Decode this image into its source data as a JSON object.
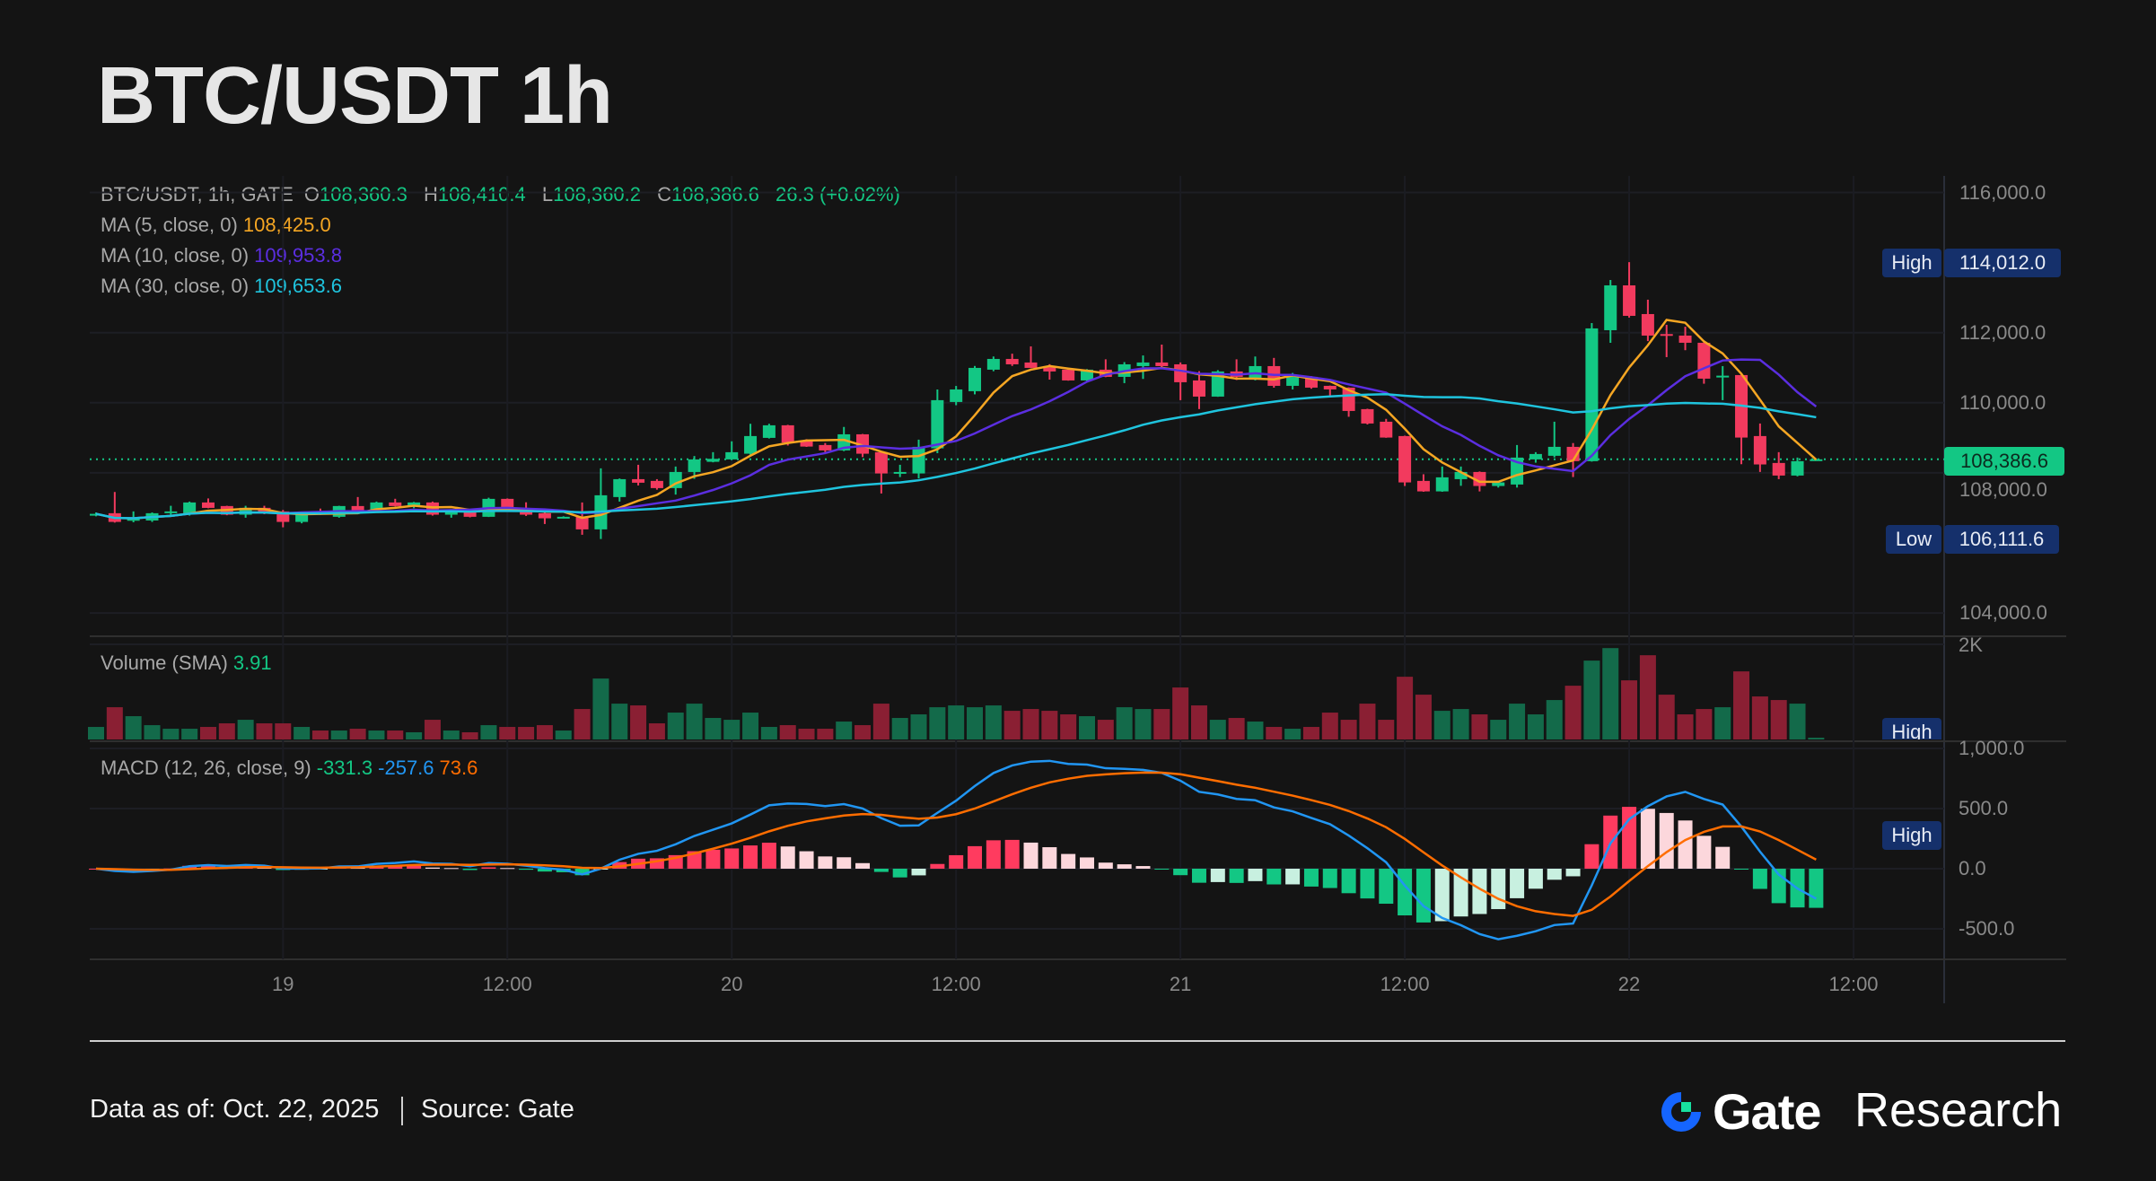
{
  "title": "BTC/USDT 1h",
  "legend": {
    "symbol": "BTC/USDT, 1h, GATE",
    "o_label": "O",
    "o": "108,360.3",
    "h_label": "H",
    "h": "108,410.4",
    "l_label": "L",
    "l": "108,360.2",
    "c_label": "C",
    "c": "108,386.6",
    "change": "26.3 (+0.02%)",
    "ma5_label": "MA (5, close, 0)",
    "ma5": "108,425.0",
    "ma10_label": "MA (10, close, 0)",
    "ma10": "109,953.8",
    "ma30_label": "MA (30, close, 0)",
    "ma30": "109,653.6",
    "volume_label": "Volume (SMA)",
    "volume": "3.91",
    "macd_label": "MACD (12, 26, close, 9)",
    "macd_hist": "-331.3",
    "macd_line": "-257.6",
    "macd_signal": "73.6"
  },
  "badges": {
    "high_label": "High",
    "high_value": "114,012.0",
    "low_label": "Low",
    "low_value": "106,111.6",
    "last_price": "108,386.6",
    "volume_high_label": "High",
    "macd_high_label": "High"
  },
  "colors": {
    "up": "#13c784",
    "down": "#f23a5e",
    "vol_up": "#136a4a",
    "vol_down": "#8a1f33",
    "ma5": "#f5a623",
    "ma10": "#5b2ee0",
    "ma30": "#1fc4de",
    "macd": "#2196f3",
    "signal": "#ff6d00",
    "hist_up_strong": "#ff3b5f",
    "hist_up_weak": "#fcd7dc",
    "hist_down_strong": "#13c784",
    "hist_down_weak": "#c8f0e0",
    "badge": "#15306b"
  },
  "footer": {
    "data_as_of": "Data as of: Oct. 22, 2025",
    "source": "Source:  Gate",
    "logo_gate": "Gate",
    "logo_research": "Research"
  },
  "chart_data": {
    "type": "candlestick",
    "title": "BTC/USDT 1h",
    "price_axis": {
      "ylim": [
        103200,
        116400
      ],
      "ticks": [
        "116,000.0",
        "112,000.0",
        "110,000.0",
        "108,000.0",
        "104,000.0"
      ],
      "tick_values": [
        116000,
        112000,
        110000,
        108000,
        104000
      ]
    },
    "volume_axis": {
      "max": 2000,
      "ticks": [
        "2K"
      ]
    },
    "macd_axis": {
      "ylim": [
        -750,
        1050
      ],
      "ticks": [
        "1,000.0",
        "500.0",
        "0.0",
        "-500.0"
      ],
      "tick_values": [
        1000,
        500,
        0,
        -500
      ]
    },
    "time_labels": [
      {
        "label": "19",
        "index": 10
      },
      {
        "label": "12:00",
        "index": 22
      },
      {
        "label": "20",
        "index": 34
      },
      {
        "label": "12:00",
        "index": 46
      },
      {
        "label": "21",
        "index": 58
      },
      {
        "label": "12:00",
        "index": 70
      },
      {
        "label": "22",
        "index": 82
      },
      {
        "label": "12:00",
        "index": 94
      }
    ],
    "last_price": 108386.6,
    "high_value": 114012.0,
    "low_value": 106111.6,
    "ohlc": [
      [
        106815,
        106870,
        106760,
        106830
      ],
      [
        106848,
        107454,
        106580,
        106600
      ],
      [
        106640,
        106900,
        106590,
        106685
      ],
      [
        106640,
        106870,
        106600,
        106848
      ],
      [
        106865,
        107060,
        106800,
        106900
      ],
      [
        106848,
        107180,
        106780,
        107155
      ],
      [
        107155,
        107270,
        106990,
        107000
      ],
      [
        107053,
        107060,
        106790,
        106806
      ],
      [
        106806,
        107060,
        106720,
        107002
      ],
      [
        107002,
        107060,
        106820,
        106848
      ],
      [
        106900,
        106940,
        106446,
        106600
      ],
      [
        106600,
        106870,
        106560,
        106848
      ],
      [
        106900,
        106980,
        106800,
        106848
      ],
      [
        106746,
        107060,
        106720,
        107053
      ],
      [
        107053,
        107310,
        106890,
        106900
      ],
      [
        106950,
        107180,
        106920,
        107155
      ],
      [
        107155,
        107260,
        107040,
        107053
      ],
      [
        107070,
        107170,
        106990,
        107155
      ],
      [
        107155,
        107180,
        106780,
        106806
      ],
      [
        106806,
        106960,
        106720,
        106950
      ],
      [
        106950,
        106960,
        106730,
        106746
      ],
      [
        106746,
        107290,
        106740,
        107258
      ],
      [
        107258,
        107270,
        106940,
        106950
      ],
      [
        106985,
        107160,
        106770,
        106806
      ],
      [
        106848,
        106870,
        106540,
        106703
      ],
      [
        106712,
        106760,
        106700,
        106746
      ],
      [
        106746,
        107155,
        106233,
        106387
      ],
      [
        106387,
        108128,
        106112,
        107360
      ],
      [
        107309,
        107840,
        107180,
        107820
      ],
      [
        107820,
        108230,
        107640,
        107718
      ],
      [
        107770,
        107820,
        107520,
        107565
      ],
      [
        107565,
        108180,
        107380,
        108025
      ],
      [
        108025,
        108480,
        107830,
        108384
      ],
      [
        108315,
        108590,
        108300,
        108400
      ],
      [
        108384,
        108900,
        108370,
        108589
      ],
      [
        108546,
        109400,
        108520,
        109050
      ],
      [
        108998,
        109400,
        108980,
        109357
      ],
      [
        109357,
        109370,
        108780,
        108862
      ],
      [
        108905,
        108960,
        108740,
        108750
      ],
      [
        108794,
        108850,
        108590,
        108640
      ],
      [
        108640,
        109310,
        108620,
        109100
      ],
      [
        109100,
        109110,
        108450,
        108546
      ],
      [
        108589,
        108600,
        107411,
        107983
      ],
      [
        108008,
        108230,
        107880,
        108025
      ],
      [
        107983,
        108947,
        107840,
        108742
      ],
      [
        108700,
        110380,
        108560,
        110074
      ],
      [
        110022,
        110480,
        109930,
        110380
      ],
      [
        110330,
        111050,
        110240,
        110995
      ],
      [
        110944,
        111320,
        110900,
        111251
      ],
      [
        111251,
        111400,
        111050,
        111097
      ],
      [
        111149,
        111609,
        110990,
        110995
      ],
      [
        111046,
        111100,
        110660,
        110893
      ],
      [
        110944,
        110960,
        110630,
        110637
      ],
      [
        110637,
        110960,
        110600,
        110944
      ],
      [
        110944,
        111240,
        110730,
        110739
      ],
      [
        110739,
        111160,
        110560,
        111097
      ],
      [
        111046,
        111350,
        110680,
        111149
      ],
      [
        111149,
        111660,
        111020,
        111046
      ],
      [
        111097,
        111150,
        110074,
        110586
      ],
      [
        110637,
        110900,
        109820,
        110176
      ],
      [
        110176,
        110930,
        110170,
        110893
      ],
      [
        110893,
        111240,
        110650,
        110739
      ],
      [
        110688,
        111320,
        110640,
        111046
      ],
      [
        111046,
        111280,
        110430,
        110483
      ],
      [
        110483,
        110850,
        110380,
        110739
      ],
      [
        110739,
        110760,
        110400,
        110432
      ],
      [
        110483,
        110490,
        110170,
        110381
      ],
      [
        110432,
        110440,
        109600,
        109766
      ],
      [
        109818,
        109830,
        109380,
        109408
      ],
      [
        109459,
        109540,
        109000,
        109007
      ],
      [
        109050,
        109060,
        107625,
        107727
      ],
      [
        107770,
        107960,
        107460,
        107471
      ],
      [
        107471,
        108180,
        107460,
        107872
      ],
      [
        107820,
        108180,
        107630,
        108025
      ],
      [
        108025,
        108040,
        107470,
        107625
      ],
      [
        107625,
        107770,
        107580,
        107727
      ],
      [
        107667,
        108794,
        107580,
        108435
      ],
      [
        108384,
        108590,
        108290,
        108538
      ],
      [
        108487,
        109459,
        108440,
        108742
      ],
      [
        108742,
        108850,
        107880,
        108333
      ],
      [
        108333,
        112275,
        108320,
        112122
      ],
      [
        112070,
        113504,
        111712,
        113350
      ],
      [
        113350,
        114012,
        112430,
        112480
      ],
      [
        112531,
        112941,
        111760,
        111917
      ],
      [
        111960,
        112224,
        111302,
        111950
      ],
      [
        111917,
        112170,
        111500,
        111712
      ],
      [
        111712,
        111720,
        110543,
        110688
      ],
      [
        110765,
        111046,
        110074,
        110773
      ],
      [
        110790,
        110810,
        108248,
        109007
      ],
      [
        109050,
        109408,
        108026,
        108240
      ],
      [
        108282,
        108590,
        107820,
        107923
      ],
      [
        107923,
        108436,
        107900,
        108333
      ],
      [
        108360.3,
        108410.4,
        108360.2,
        108386.6
      ]
    ],
    "volume": [
      269,
      691,
      499,
      307,
      230,
      230,
      269,
      346,
      422,
      346,
      346,
      269,
      192,
      192,
      230,
      192,
      192,
      154,
      422,
      192,
      154,
      307,
      269,
      269,
      307,
      192,
      653,
      1306,
      768,
      730,
      346,
      576,
      768,
      461,
      422,
      576,
      269,
      307,
      230,
      230,
      384,
      307,
      768,
      461,
      538,
      691,
      730,
      691,
      730,
      614,
      653,
      614,
      538,
      499,
      422,
      691,
      653,
      653,
      1114,
      730,
      422,
      461,
      384,
      269,
      230,
      269,
      576,
      422,
      768,
      422,
      1344,
      960,
      614,
      653,
      538,
      422,
      768,
      538,
      845,
      1152,
      1690,
      1958,
      1267,
      1805,
      960,
      538,
      653,
      691,
      1459,
      922,
      845,
      768,
      38
    ],
    "ma_periods": [
      5,
      10,
      30
    ],
    "macd_params": [
      12,
      26,
      9
    ]
  }
}
